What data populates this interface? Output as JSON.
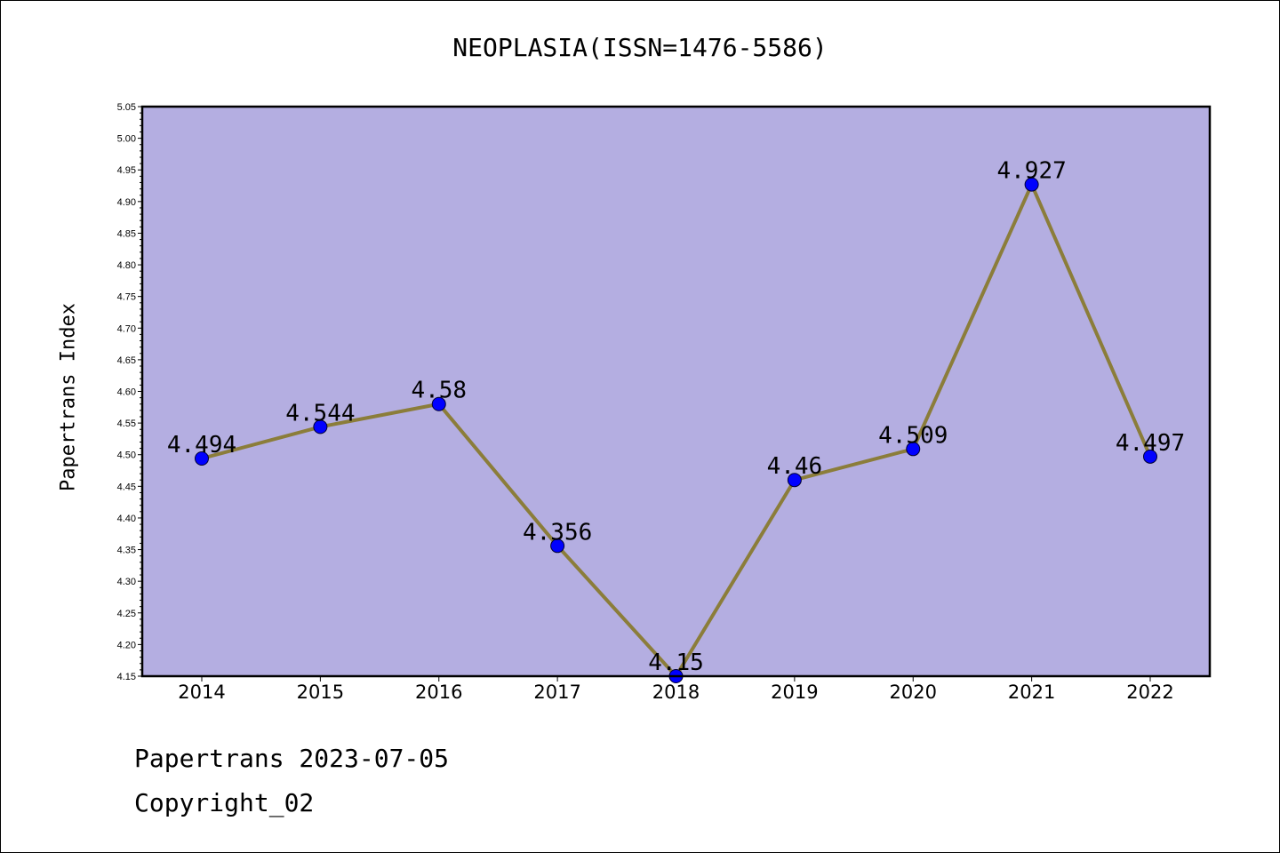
{
  "chart_data": {
    "type": "line",
    "title": "NEOPLASIA(ISSN=1476-5586)",
    "xlabel": "",
    "ylabel": "Papertrans Index",
    "categories": [
      "2014",
      "2015",
      "2016",
      "2017",
      "2018",
      "2019",
      "2020",
      "2021",
      "2022"
    ],
    "series": [
      {
        "values": [
          4.494,
          4.544,
          4.58,
          4.356,
          4.15,
          4.46,
          4.509,
          4.927,
          4.497
        ]
      }
    ],
    "data_labels": [
      "4.494",
      "4.544",
      "4.58",
      "4.356",
      "4.15",
      "4.46",
      "4.509",
      "4.927",
      "4.497"
    ],
    "ylim": [
      4.15,
      5.05
    ],
    "yticks": [
      "4.15",
      "4.20",
      "4.25",
      "4.30",
      "4.35",
      "4.40",
      "4.45",
      "4.50",
      "4.55",
      "4.60",
      "4.65",
      "4.70",
      "4.75",
      "4.80",
      "4.85",
      "4.90",
      "4.95",
      "5.00",
      "5.05"
    ],
    "grid": false,
    "legend": "none",
    "colors": {
      "plot_background": "#b4aee1",
      "line": "#8b7d3a",
      "marker": "#0000ff",
      "marker_edge": "#000033"
    }
  },
  "footer": {
    "line1": "Papertrans 2023-07-05",
    "line2": "Copyright_02"
  }
}
